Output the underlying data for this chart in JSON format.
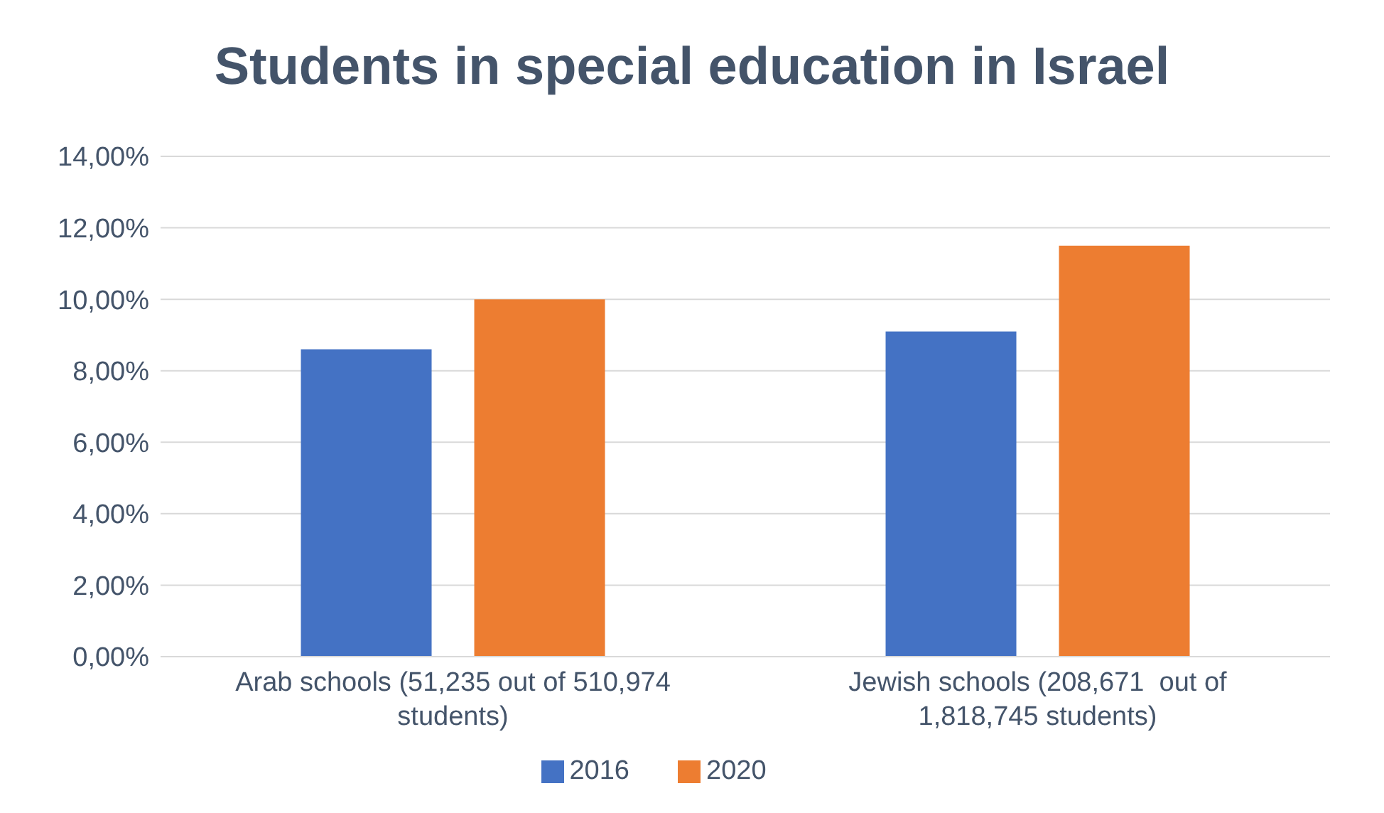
{
  "chart_data": {
    "type": "bar",
    "title": "Students in special education in Israel",
    "categories": [
      "Arab schools (51,235 out of 510,974 students)",
      "Jewish schools (208,671  out of 1,818,745 students)"
    ],
    "series": [
      {
        "name": "2016",
        "color": "#4472c4",
        "values": [
          8.6,
          9.1
        ]
      },
      {
        "name": "2020",
        "color": "#ed7d31",
        "values": [
          10.0,
          11.5
        ]
      }
    ],
    "ylim": [
      0,
      14
    ],
    "yticks": [
      {
        "value": 0,
        "label": "0,00%"
      },
      {
        "value": 2,
        "label": "2,00%"
      },
      {
        "value": 4,
        "label": "4,00%"
      },
      {
        "value": 6,
        "label": "6,00%"
      },
      {
        "value": 8,
        "label": "8,00%"
      },
      {
        "value": 10,
        "label": "10,00%"
      },
      {
        "value": 12,
        "label": "12,00%"
      },
      {
        "value": 14,
        "label": "14,00%"
      }
    ],
    "grid": "y",
    "legend": "bottom"
  }
}
